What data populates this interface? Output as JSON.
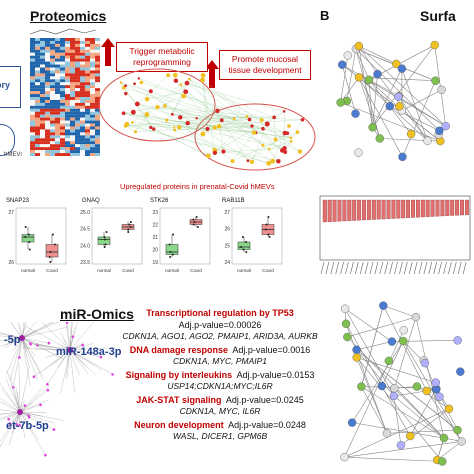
{
  "proteomics_panel": {
    "title": "Proteomics",
    "side_label": "ory",
    "hmev_label": "hMEVs",
    "box1": "Trigger metabolic reprogramming",
    "box2": "Promote mucosal tissue development",
    "caption": "Upregulated proteins in prenatal-Covid hMEVs"
  },
  "boxplots": [
    {
      "title": "SNAP23",
      "ticks": [
        "27",
        "26"
      ],
      "xlabels": [
        "normal",
        "Covid"
      ]
    },
    {
      "title": "GNAQ",
      "ticks": [
        "25.0",
        "24.5",
        "24.0",
        "23.5"
      ],
      "xlabels": [
        "normal",
        "Covid"
      ]
    },
    {
      "title": "STK26",
      "ticks": [
        "23",
        "22",
        "21",
        "20",
        "19"
      ],
      "xlabels": [
        "normal",
        "Covid"
      ]
    },
    {
      "title": "RAB11B",
      "ticks": [
        "27",
        "26",
        "25",
        "24"
      ],
      "xlabels": [
        "normal",
        "Covid"
      ]
    }
  ],
  "mir_panel": {
    "title": "miR-Omics",
    "mir1": "miR-148a-3p",
    "mir2": "-5p",
    "mir3": "et-7b-5p",
    "pathways": [
      {
        "name": "Transcriptional regulation by TP53",
        "pval": "Adj.p-value=0.00026",
        "genes": "CDKN1A, AGO1, AGO2, PMAIP1, ARID3A, AURKB"
      },
      {
        "name": "DNA damage response",
        "pval": "Adj.p-value=0.0016",
        "genes": "CDKN1A, MYC, PMAIP1"
      },
      {
        "name": "Signaling by interleukins",
        "pval": "Adj.p-value=0.0153",
        "genes": "USP14;CDKN1A;MYC;IL6R"
      },
      {
        "name": "JAK-STAT signaling",
        "pval": "Adj.p-value=0.0245",
        "genes": "CDKN1A, MYC, IL6R"
      },
      {
        "name": "Neuron development",
        "pval": "Adj.p-value=0.0248",
        "genes": "WASL, DICER1, GPM6B"
      }
    ]
  },
  "panel_b": {
    "letter": "B",
    "title": "Surfa"
  },
  "colors": {
    "accent_red": "#c00000",
    "normal_green": "#7ed37e",
    "covid_red": "#f08080",
    "mir_blue": "#1f3f8f"
  }
}
